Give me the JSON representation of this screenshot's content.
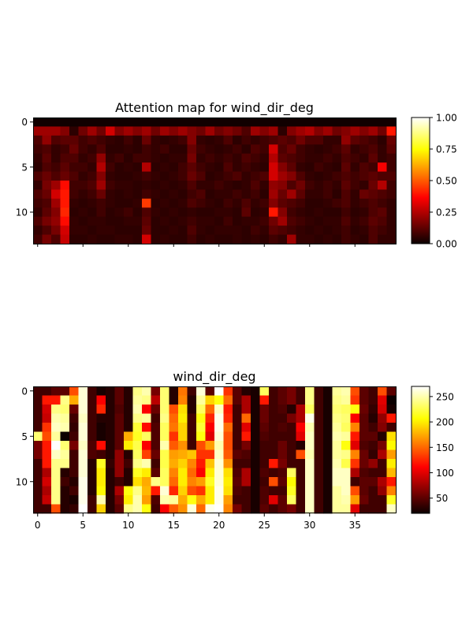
{
  "chart_data": [
    {
      "type": "heatmap",
      "title": "Attention map for wind_dir_deg",
      "colormap": "hot",
      "rows": 14,
      "cols": 40,
      "value_range": [
        0,
        1
      ],
      "y_ticks": [
        0,
        5,
        10
      ],
      "x_ticks": [],
      "x_tick_labels_shown": false,
      "colorbar_ticks": [
        "0.00",
        "0.25",
        "0.50",
        "0.75",
        "1.00"
      ],
      "colorbar_tick_values": [
        0,
        0.25,
        0.5,
        0.75,
        1.0
      ],
      "values": [
        [
          0.01,
          0.01,
          0.01,
          0.01,
          0.01,
          0.01,
          0.01,
          0.01,
          0.01,
          0.01,
          0.01,
          0.01,
          0.01,
          0.01,
          0.01,
          0.01,
          0.01,
          0.01,
          0.01,
          0.01,
          0.01,
          0.01,
          0.01,
          0.01,
          0.01,
          0.01,
          0.01,
          0.01,
          0.01,
          0.01,
          0.01,
          0.01,
          0.01,
          0.01,
          0.01,
          0.01,
          0.01,
          0.01,
          0.01,
          0.01
        ],
        [
          0.22,
          0.22,
          0.22,
          0.18,
          0.05,
          0.15,
          0.22,
          0.15,
          0.3,
          0.18,
          0.22,
          0.18,
          0.22,
          0.15,
          0.22,
          0.18,
          0.22,
          0.18,
          0.15,
          0.22,
          0.15,
          0.18,
          0.15,
          0.1,
          0.22,
          0.18,
          0.22,
          0.05,
          0.18,
          0.22,
          0.25,
          0.18,
          0.22,
          0.15,
          0.18,
          0.22,
          0.18,
          0.22,
          0.15,
          0.4
        ],
        [
          0.1,
          0.2,
          0.1,
          0.12,
          0.12,
          0.08,
          0.1,
          0.08,
          0.06,
          0.05,
          0.08,
          0.05,
          0.14,
          0.06,
          0.05,
          0.06,
          0.08,
          0.18,
          0.06,
          0.05,
          0.06,
          0.1,
          0.05,
          0.08,
          0.06,
          0.08,
          0.1,
          0.12,
          0.1,
          0.15,
          0.1,
          0.1,
          0.06,
          0.06,
          0.2,
          0.12,
          0.1,
          0.08,
          0.05,
          0.14
        ],
        [
          0.08,
          0.1,
          0.06,
          0.08,
          0.14,
          0.08,
          0.06,
          0.1,
          0.05,
          0.05,
          0.06,
          0.05,
          0.08,
          0.06,
          0.08,
          0.05,
          0.05,
          0.14,
          0.08,
          0.06,
          0.05,
          0.06,
          0.08,
          0.05,
          0.1,
          0.08,
          0.3,
          0.1,
          0.14,
          0.08,
          0.06,
          0.05,
          0.06,
          0.08,
          0.12,
          0.06,
          0.08,
          0.1,
          0.06,
          0.12
        ],
        [
          0.06,
          0.12,
          0.06,
          0.1,
          0.1,
          0.06,
          0.08,
          0.2,
          0.06,
          0.08,
          0.05,
          0.08,
          0.08,
          0.06,
          0.05,
          0.06,
          0.06,
          0.16,
          0.06,
          0.08,
          0.06,
          0.08,
          0.06,
          0.1,
          0.08,
          0.06,
          0.25,
          0.12,
          0.1,
          0.08,
          0.06,
          0.06,
          0.08,
          0.06,
          0.1,
          0.08,
          0.06,
          0.12,
          0.06,
          0.08
        ],
        [
          0.05,
          0.1,
          0.08,
          0.12,
          0.08,
          0.08,
          0.06,
          0.25,
          0.08,
          0.05,
          0.06,
          0.05,
          0.25,
          0.05,
          0.06,
          0.05,
          0.08,
          0.12,
          0.08,
          0.06,
          0.05,
          0.1,
          0.06,
          0.08,
          0.06,
          0.05,
          0.3,
          0.18,
          0.12,
          0.06,
          0.05,
          0.08,
          0.06,
          0.05,
          0.12,
          0.06,
          0.1,
          0.08,
          0.35,
          0.08
        ],
        [
          0.1,
          0.14,
          0.1,
          0.14,
          0.1,
          0.06,
          0.08,
          0.18,
          0.06,
          0.05,
          0.05,
          0.06,
          0.08,
          0.06,
          0.05,
          0.06,
          0.08,
          0.14,
          0.1,
          0.05,
          0.06,
          0.08,
          0.1,
          0.06,
          0.08,
          0.1,
          0.3,
          0.22,
          0.18,
          0.1,
          0.06,
          0.05,
          0.06,
          0.08,
          0.1,
          0.08,
          0.1,
          0.12,
          0.1,
          0.1
        ],
        [
          0.06,
          0.16,
          0.22,
          0.38,
          0.08,
          0.08,
          0.1,
          0.22,
          0.08,
          0.06,
          0.06,
          0.05,
          0.06,
          0.05,
          0.06,
          0.05,
          0.06,
          0.1,
          0.06,
          0.06,
          0.08,
          0.06,
          0.05,
          0.06,
          0.1,
          0.06,
          0.2,
          0.18,
          0.1,
          0.15,
          0.08,
          0.06,
          0.08,
          0.06,
          0.12,
          0.08,
          0.06,
          0.14,
          0.25,
          0.08
        ],
        [
          0.1,
          0.14,
          0.3,
          0.4,
          0.08,
          0.06,
          0.08,
          0.14,
          0.06,
          0.05,
          0.06,
          0.05,
          0.08,
          0.06,
          0.05,
          0.06,
          0.05,
          0.08,
          0.1,
          0.05,
          0.06,
          0.06,
          0.08,
          0.06,
          0.08,
          0.05,
          0.22,
          0.14,
          0.22,
          0.12,
          0.06,
          0.06,
          0.08,
          0.05,
          0.1,
          0.06,
          0.14,
          0.12,
          0.1,
          0.08
        ],
        [
          0.08,
          0.1,
          0.22,
          0.4,
          0.06,
          0.05,
          0.06,
          0.08,
          0.06,
          0.05,
          0.05,
          0.06,
          0.45,
          0.05,
          0.06,
          0.05,
          0.06,
          0.1,
          0.08,
          0.06,
          0.05,
          0.08,
          0.06,
          0.1,
          0.06,
          0.08,
          0.18,
          0.12,
          0.1,
          0.08,
          0.05,
          0.05,
          0.06,
          0.08,
          0.1,
          0.06,
          0.08,
          0.1,
          0.08,
          0.06
        ],
        [
          0.06,
          0.12,
          0.18,
          0.42,
          0.05,
          0.06,
          0.05,
          0.08,
          0.05,
          0.06,
          0.08,
          0.05,
          0.1,
          0.06,
          0.05,
          0.06,
          0.05,
          0.06,
          0.05,
          0.05,
          0.06,
          0.06,
          0.05,
          0.12,
          0.05,
          0.06,
          0.4,
          0.18,
          0.08,
          0.06,
          0.05,
          0.06,
          0.05,
          0.05,
          0.08,
          0.05,
          0.06,
          0.1,
          0.12,
          0.06
        ],
        [
          0.1,
          0.16,
          0.2,
          0.38,
          0.06,
          0.05,
          0.06,
          0.06,
          0.05,
          0.05,
          0.06,
          0.06,
          0.12,
          0.05,
          0.06,
          0.05,
          0.06,
          0.08,
          0.06,
          0.06,
          0.05,
          0.08,
          0.05,
          0.06,
          0.06,
          0.08,
          0.15,
          0.22,
          0.1,
          0.08,
          0.06,
          0.05,
          0.06,
          0.06,
          0.1,
          0.06,
          0.08,
          0.12,
          0.1,
          0.06
        ],
        [
          0.06,
          0.1,
          0.16,
          0.3,
          0.06,
          0.06,
          0.05,
          0.06,
          0.06,
          0.05,
          0.05,
          0.05,
          0.14,
          0.05,
          0.05,
          0.06,
          0.05,
          0.1,
          0.06,
          0.05,
          0.06,
          0.06,
          0.06,
          0.05,
          0.08,
          0.06,
          0.12,
          0.1,
          0.08,
          0.06,
          0.05,
          0.06,
          0.05,
          0.06,
          0.08,
          0.05,
          0.06,
          0.1,
          0.08,
          0.06
        ],
        [
          0.08,
          0.16,
          0.1,
          0.28,
          0.05,
          0.05,
          0.06,
          0.05,
          0.05,
          0.06,
          0.06,
          0.05,
          0.3,
          0.05,
          0.06,
          0.05,
          0.05,
          0.08,
          0.05,
          0.06,
          0.05,
          0.05,
          0.06,
          0.05,
          0.06,
          0.05,
          0.08,
          0.06,
          0.22,
          0.06,
          0.06,
          0.05,
          0.06,
          0.05,
          0.08,
          0.06,
          0.05,
          0.1,
          0.06,
          0.06
        ]
      ]
    },
    {
      "type": "heatmap",
      "title": "wind_dir_deg",
      "colormap": "hot",
      "rows": 14,
      "cols": 40,
      "value_range": [
        20,
        270
      ],
      "y_ticks": [
        0,
        5,
        10
      ],
      "x_ticks": [
        0,
        5,
        10,
        15,
        20,
        25,
        30,
        35
      ],
      "colorbar_ticks": [
        "50",
        "100",
        "150",
        "200",
        "250"
      ],
      "colorbar_tick_values": [
        50,
        100,
        150,
        200,
        250
      ],
      "values": [
        [
          40,
          40,
          50,
          50,
          140,
          260,
          40,
          25,
          30,
          50,
          30,
          240,
          250,
          60,
          235,
          30,
          155,
          40,
          260,
          50,
          270,
          130,
          50,
          30,
          25,
          230,
          40,
          50,
          60,
          40,
          240,
          40,
          25,
          245,
          250,
          140,
          50,
          40,
          140,
          50
        ],
        [
          40,
          120,
          120,
          240,
          175,
          260,
          40,
          110,
          30,
          50,
          30,
          245,
          240,
          85,
          235,
          30,
          160,
          30,
          245,
          190,
          210,
          150,
          50,
          80,
          25,
          120,
          40,
          50,
          60,
          40,
          240,
          40,
          25,
          240,
          245,
          130,
          50,
          40,
          100,
          20
        ],
        [
          40,
          95,
          240,
          235,
          55,
          260,
          40,
          125,
          30,
          45,
          30,
          250,
          110,
          55,
          235,
          140,
          195,
          30,
          230,
          150,
          255,
          120,
          40,
          80,
          25,
          55,
          40,
          45,
          30,
          80,
          230,
          40,
          25,
          235,
          230,
          210,
          55,
          35,
          95,
          25
        ],
        [
          40,
          90,
          250,
          245,
          40,
          255,
          40,
          30,
          30,
          50,
          30,
          240,
          245,
          40,
          240,
          150,
          200,
          40,
          210,
          125,
          265,
          125,
          40,
          150,
          25,
          55,
          40,
          40,
          60,
          80,
          265,
          40,
          25,
          240,
          235,
          110,
          50,
          30,
          70,
          120
        ],
        [
          40,
          130,
          255,
          250,
          35,
          260,
          40,
          25,
          30,
          50,
          30,
          220,
          115,
          45,
          230,
          155,
          190,
          40,
          220,
          110,
          265,
          150,
          40,
          100,
          25,
          50,
          40,
          45,
          40,
          110,
          250,
          40,
          25,
          245,
          230,
          160,
          50,
          40,
          65,
          40
        ],
        [
          235,
          140,
          245,
          20,
          40,
          260,
          40,
          25,
          30,
          50,
          175,
          215,
          230,
          45,
          230,
          130,
          190,
          40,
          210,
          100,
          260,
          140,
          40,
          120,
          25,
          45,
          40,
          40,
          40,
          100,
          255,
          40,
          25,
          250,
          245,
          120,
          50,
          50,
          30,
          195
        ],
        [
          60,
          120,
          270,
          235,
          60,
          255,
          45,
          115,
          30,
          50,
          200,
          225,
          110,
          45,
          250,
          145,
          165,
          40,
          140,
          170,
          250,
          140,
          40,
          60,
          25,
          40,
          40,
          55,
          40,
          30,
          255,
          40,
          25,
          245,
          210,
          100,
          45,
          40,
          60,
          205
        ],
        [
          60,
          120,
          255,
          245,
          40,
          260,
          45,
          40,
          30,
          70,
          30,
          230,
          135,
          55,
          225,
          170,
          175,
          185,
          130,
          130,
          255,
          145,
          50,
          45,
          25,
          40,
          40,
          55,
          40,
          140,
          250,
          40,
          25,
          245,
          240,
          160,
          55,
          35,
          80,
          170
        ],
        [
          40,
          120,
          240,
          240,
          40,
          260,
          30,
          215,
          35,
          70,
          40,
          240,
          250,
          40,
          225,
          175,
          190,
          160,
          120,
          185,
          260,
          165,
          40,
          40,
          25,
          40,
          120,
          60,
          40,
          40,
          255,
          40,
          25,
          250,
          225,
          130,
          55,
          70,
          40,
          200
        ],
        [
          40,
          80,
          240,
          30,
          40,
          260,
          30,
          200,
          30,
          70,
          30,
          215,
          200,
          50,
          230,
          160,
          200,
          150,
          110,
          200,
          260,
          195,
          45,
          80,
          25,
          45,
          40,
          45,
          230,
          40,
          255,
          40,
          25,
          255,
          255,
          80,
          45,
          40,
          40,
          180
        ],
        [
          40,
          95,
          240,
          40,
          30,
          265,
          30,
          200,
          30,
          40,
          30,
          195,
          175,
          240,
          230,
          150,
          200,
          160,
          170,
          215,
          260,
          200,
          50,
          80,
          25,
          40,
          140,
          50,
          205,
          40,
          255,
          40,
          25,
          255,
          255,
          40,
          50,
          50,
          80,
          120
        ],
        [
          40,
          80,
          240,
          30,
          40,
          265,
          30,
          205,
          30,
          80,
          210,
          240,
          180,
          120,
          260,
          125,
          190,
          140,
          130,
          200,
          265,
          195,
          45,
          40,
          25,
          45,
          40,
          40,
          215,
          40,
          255,
          40,
          25,
          245,
          255,
          140,
          50,
          40,
          70,
          160
        ],
        [
          40,
          90,
          240,
          30,
          25,
          265,
          40,
          250,
          30,
          60,
          200,
          250,
          170,
          45,
          250,
          245,
          175,
          210,
          175,
          200,
          265,
          170,
          40,
          40,
          25,
          45,
          100,
          50,
          230,
          40,
          255,
          40,
          25,
          245,
          250,
          170,
          55,
          40,
          40,
          215
        ],
        [
          40,
          40,
          140,
          30,
          35,
          270,
          40,
          190,
          30,
          50,
          240,
          250,
          210,
          40,
          110,
          145,
          165,
          260,
          150,
          265,
          270,
          160,
          60,
          40,
          25,
          50,
          40,
          50,
          60,
          40,
          255,
          40,
          25,
          245,
          245,
          100,
          40,
          40,
          40,
          255
        ]
      ]
    }
  ]
}
